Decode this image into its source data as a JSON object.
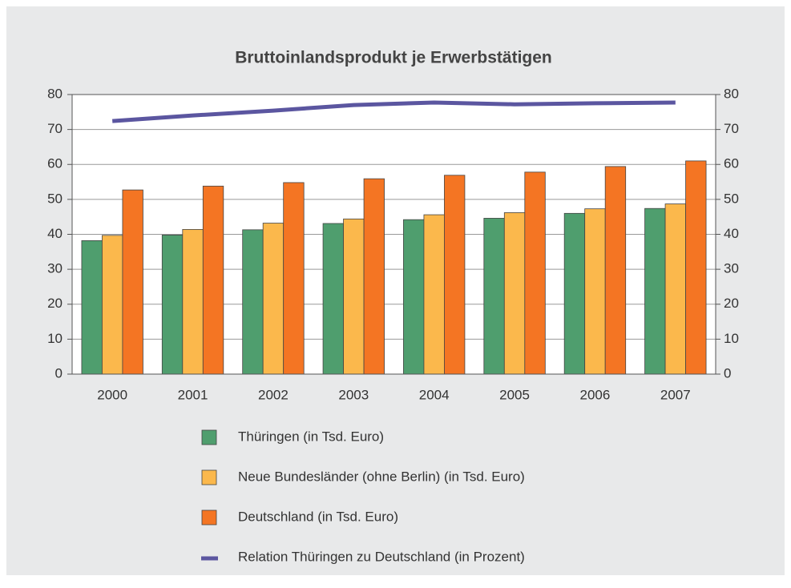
{
  "chart_data": {
    "type": "bar",
    "title": "Bruttoinlandsprodukt je Erwerbstätigen",
    "categories": [
      "2000",
      "2001",
      "2002",
      "2003",
      "2004",
      "2005",
      "2006",
      "2007"
    ],
    "series": [
      {
        "name": "Thüringen (in Tsd. Euro)",
        "color": "#4f9e6e",
        "type": "bar",
        "values": [
          38.2,
          39.8,
          41.3,
          43.1,
          44.2,
          44.6,
          46.0,
          47.4
        ]
      },
      {
        "name": "Neue Bundesländer (ohne Berlin) (in Tsd. Euro)",
        "color": "#fbb84c",
        "type": "bar",
        "values": [
          39.7,
          41.4,
          43.2,
          44.4,
          45.6,
          46.2,
          47.3,
          48.7
        ]
      },
      {
        "name": "Deutschland (in Tsd. Euro)",
        "color": "#f47523",
        "type": "bar",
        "values": [
          52.7,
          53.8,
          54.8,
          55.9,
          56.9,
          57.8,
          59.4,
          61.0
        ]
      },
      {
        "name": "Relation Thüringen zu Deutschland (in Prozent)",
        "color": "#5b56a0",
        "type": "line",
        "axis": "y2",
        "values": [
          72.4,
          74.0,
          75.4,
          77.0,
          77.7,
          77.2,
          77.5,
          77.7
        ]
      }
    ],
    "ylim": [
      0,
      80
    ],
    "yticks": [
      0,
      10,
      20,
      30,
      40,
      50,
      60,
      70,
      80
    ],
    "y2lim": [
      0,
      80
    ],
    "y2ticks": [
      0,
      10,
      20,
      30,
      40,
      50,
      60,
      70,
      80
    ],
    "grid": true
  }
}
